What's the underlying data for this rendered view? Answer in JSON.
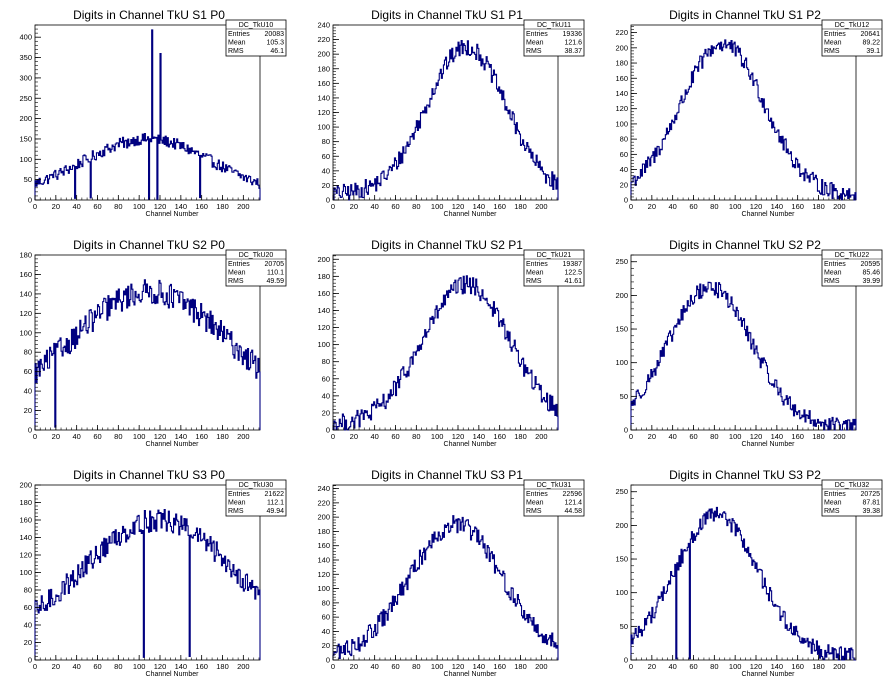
{
  "colors": {
    "line": "#000080",
    "axis": "#000000",
    "background": "#ffffff"
  },
  "x_axis_label": "Channel Number",
  "stats_labels": {
    "entries": "Entries",
    "mean": "Mean",
    "rms": "RMS"
  },
  "chart_data": [
    {
      "type": "histogram",
      "title": "Digits in Channel TkU S1 P0",
      "xlabel": "Channel Number",
      "ylabel": "",
      "xlim": [
        0,
        216
      ],
      "ylim": [
        0,
        430
      ],
      "xticks": [
        0,
        20,
        40,
        60,
        80,
        100,
        120,
        140,
        160,
        180,
        200
      ],
      "yticks": [
        0,
        50,
        100,
        150,
        200,
        250,
        300,
        350,
        400
      ],
      "stats": {
        "name": "DC_TkU10",
        "entries": "20083",
        "mean": "105.3",
        "rms": "46.1"
      },
      "shape": {
        "kind": "bell",
        "center": 108,
        "sigma": 62,
        "peak": 150,
        "floor": 10,
        "noise": 14
      },
      "spikes": [
        [
          17,
          55
        ],
        [
          38,
          4
        ],
        [
          53,
          5
        ],
        [
          88,
          128
        ],
        [
          109,
          2
        ],
        [
          112,
          418
        ],
        [
          117,
          2
        ],
        [
          120,
          360
        ],
        [
          158,
          6
        ]
      ]
    },
    {
      "type": "histogram",
      "title": "Digits in Channel TkU S1 P1",
      "xlabel": "Channel Number",
      "ylabel": "",
      "xlim": [
        0,
        216
      ],
      "ylim": [
        0,
        240
      ],
      "xticks": [
        0,
        20,
        40,
        60,
        80,
        100,
        120,
        140,
        160,
        180,
        200
      ],
      "yticks": [
        0,
        20,
        40,
        60,
        80,
        100,
        120,
        140,
        160,
        180,
        200,
        220,
        240
      ],
      "stats": {
        "name": "DC_TkU11",
        "entries": "19336",
        "mean": "121.6",
        "rms": "38.37"
      },
      "shape": {
        "kind": "bell",
        "center": 128,
        "sigma": 38,
        "peak": 210,
        "floor": 8,
        "noise": 12
      },
      "spikes": []
    },
    {
      "type": "histogram",
      "title": "Digits in Channel TkU S1 P2",
      "xlabel": "Channel Number",
      "ylabel": "",
      "xlim": [
        0,
        216
      ],
      "ylim": [
        0,
        230
      ],
      "xticks": [
        0,
        20,
        40,
        60,
        80,
        100,
        120,
        140,
        160,
        180,
        200
      ],
      "yticks": [
        0,
        20,
        40,
        60,
        80,
        100,
        120,
        140,
        160,
        180,
        200,
        220
      ],
      "stats": {
        "name": "DC_TkU12",
        "entries": "20641",
        "mean": "89.22",
        "rms": "39.1"
      },
      "shape": {
        "kind": "bell",
        "center": 88,
        "sigma": 40,
        "peak": 205,
        "floor": 6,
        "noise": 11
      },
      "spikes": [
        [
          208,
          2
        ]
      ]
    },
    {
      "type": "histogram",
      "title": "Digits in Channel TkU S2 P0",
      "xlabel": "Channel Number",
      "ylabel": "",
      "xlim": [
        0,
        216
      ],
      "ylim": [
        0,
        180
      ],
      "xticks": [
        0,
        20,
        40,
        60,
        80,
        100,
        120,
        140,
        160,
        180,
        200
      ],
      "yticks": [
        0,
        20,
        40,
        60,
        80,
        100,
        120,
        140,
        160,
        180
      ],
      "stats": {
        "name": "DC_TkU20",
        "entries": "20705",
        "mean": "110.1",
        "rms": "49.59"
      },
      "shape": {
        "kind": "bell",
        "center": 110,
        "sigma": 78,
        "peak": 142,
        "floor": 10,
        "noise": 13
      },
      "spikes": [
        [
          19,
          3
        ]
      ]
    },
    {
      "type": "histogram",
      "title": "Digits in Channel TkU S2 P1",
      "xlabel": "Channel Number",
      "ylabel": "",
      "xlim": [
        0,
        216
      ],
      "ylim": [
        0,
        205
      ],
      "xticks": [
        0,
        20,
        40,
        60,
        80,
        100,
        120,
        140,
        160,
        180,
        200
      ],
      "yticks": [
        0,
        20,
        40,
        60,
        80,
        100,
        120,
        140,
        160,
        180,
        200
      ],
      "stats": {
        "name": "DC_TkU21",
        "entries": "19387",
        "mean": "122.5",
        "rms": "41.61"
      },
      "shape": {
        "kind": "bell",
        "center": 128,
        "sigma": 42,
        "peak": 170,
        "floor": 5,
        "noise": 11
      },
      "spikes": []
    },
    {
      "type": "histogram",
      "title": "Digits in Channel TkU S2 P2",
      "xlabel": "Channel Number",
      "ylabel": "",
      "xlim": [
        0,
        216
      ],
      "ylim": [
        0,
        260
      ],
      "xticks": [
        0,
        20,
        40,
        60,
        80,
        100,
        120,
        140,
        160,
        180,
        200
      ],
      "yticks": [
        0,
        50,
        100,
        150,
        200,
        250
      ],
      "stats": {
        "name": "DC_TkU22",
        "entries": "20595",
        "mean": "85.46",
        "rms": "39.99"
      },
      "shape": {
        "kind": "bell",
        "center": 76,
        "sigma": 40,
        "peak": 212,
        "floor": 5,
        "noise": 12
      },
      "spikes": []
    },
    {
      "type": "histogram",
      "title": "Digits in Channel TkU S3 P0",
      "xlabel": "Channel Number",
      "ylabel": "",
      "xlim": [
        0,
        216
      ],
      "ylim": [
        0,
        200
      ],
      "xticks": [
        0,
        20,
        40,
        60,
        80,
        100,
        120,
        140,
        160,
        180,
        200
      ],
      "yticks": [
        0,
        20,
        40,
        60,
        80,
        100,
        120,
        140,
        160,
        180,
        200
      ],
      "stats": {
        "name": "DC_TkU30",
        "entries": "21622",
        "mean": "112.1",
        "rms": "49.94"
      },
      "shape": {
        "kind": "bell",
        "center": 118,
        "sigma": 72,
        "peak": 160,
        "floor": 18,
        "noise": 13
      },
      "spikes": [
        [
          104,
          3
        ],
        [
          148,
          4
        ]
      ]
    },
    {
      "type": "histogram",
      "title": "Digits in Channel TkU S3 P1",
      "xlabel": "Channel Number",
      "ylabel": "",
      "xlim": [
        0,
        216
      ],
      "ylim": [
        0,
        245
      ],
      "xticks": [
        0,
        20,
        40,
        60,
        80,
        100,
        120,
        140,
        160,
        180,
        200
      ],
      "yticks": [
        0,
        20,
        40,
        60,
        80,
        100,
        120,
        140,
        160,
        180,
        200,
        220,
        240
      ],
      "stats": {
        "name": "DC_TkU31",
        "entries": "22596",
        "mean": "121.4",
        "rms": "44.58"
      },
      "shape": {
        "kind": "bell",
        "center": 118,
        "sigma": 44,
        "peak": 190,
        "floor": 5,
        "noise": 13
      },
      "spikes": []
    },
    {
      "type": "histogram",
      "title": "Digits in Channel TkU S3 P2",
      "xlabel": "Channel Number",
      "ylabel": "",
      "xlim": [
        0,
        216
      ],
      "ylim": [
        0,
        260
      ],
      "xticks": [
        0,
        20,
        40,
        60,
        80,
        100,
        120,
        140,
        160,
        180,
        200
      ],
      "yticks": [
        0,
        50,
        100,
        150,
        200,
        250
      ],
      "stats": {
        "name": "DC_TkU32",
        "entries": "20725",
        "mean": "87.81",
        "rms": "39.38"
      },
      "shape": {
        "kind": "bell",
        "center": 82,
        "sigma": 40,
        "peak": 215,
        "floor": 5,
        "noise": 12
      },
      "spikes": [
        [
          43,
          2
        ],
        [
          56,
          2
        ]
      ]
    }
  ]
}
